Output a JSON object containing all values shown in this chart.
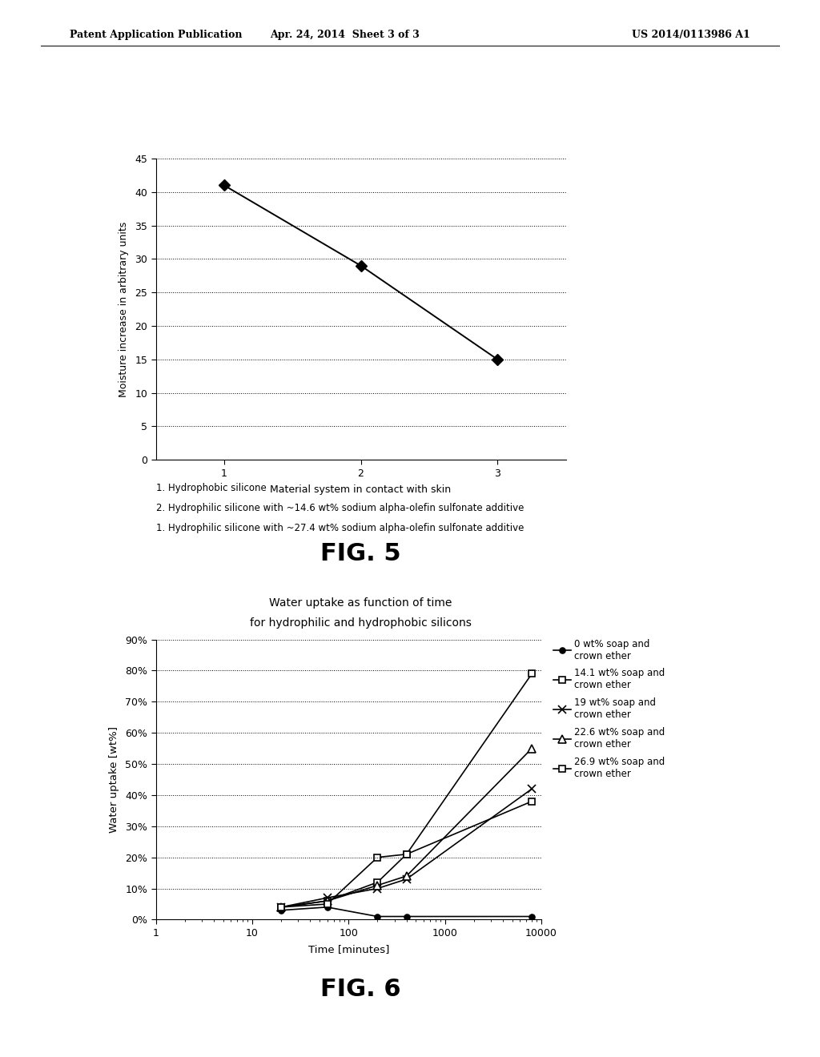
{
  "header_left": "Patent Application Publication",
  "header_center": "Apr. 24, 2014  Sheet 3 of 3",
  "header_right": "US 2014/0113986 A1",
  "fig5": {
    "x": [
      1,
      2,
      3
    ],
    "y": [
      41,
      29,
      15
    ],
    "xlabel": "Material system in contact with skin",
    "ylabel": "Moisture increase in arbitrary units",
    "ylim": [
      0,
      45
    ],
    "yticks": [
      0,
      5,
      10,
      15,
      20,
      25,
      30,
      35,
      40,
      45
    ],
    "xticks": [
      1,
      2,
      3
    ],
    "caption_lines": [
      "1. Hydrophobic silicone",
      "2. Hydrophilic silicone with ~14.6 wt% sodium alpha-olefin sulfonate additive",
      "1. Hydrophilic silicone with ~27.4 wt% sodium alpha-olefin sulfonate additive"
    ],
    "fig_label": "FIG. 5"
  },
  "fig6": {
    "title_line1": "Water uptake as function of time",
    "title_line2": "for hydrophilic and hydrophobic silicons",
    "xlabel": "Time [minutes]",
    "ylabel": "Water uptake [wt%]",
    "ylim": [
      0,
      0.9
    ],
    "yticks": [
      0,
      0.1,
      0.2,
      0.3,
      0.4,
      0.5,
      0.6,
      0.7,
      0.8,
      0.9
    ],
    "ytick_labels": [
      "0%",
      "10%",
      "20%",
      "30%",
      "40%",
      "50%",
      "60%",
      "70%",
      "80%",
      "90%"
    ],
    "xlim": [
      1,
      10000
    ],
    "xticks": [
      1,
      10,
      100,
      1000,
      10000
    ],
    "xtick_labels": [
      "1",
      "10",
      "100",
      "1000",
      "10000"
    ],
    "series": [
      {
        "label": "0 wt% soap and\ncrown ether",
        "x": [
          20,
          60,
          200,
          400,
          8000
        ],
        "y": [
          0.03,
          0.04,
          0.01,
          0.01,
          0.01
        ],
        "marker": "o",
        "markersize": 5,
        "linestyle": "-",
        "color": "#000000",
        "fillstyle": "full"
      },
      {
        "label": "14.1 wt% soap and\ncrown ether",
        "x": [
          20,
          60,
          200,
          400,
          8000
        ],
        "y": [
          0.04,
          0.06,
          0.12,
          0.21,
          0.38
        ],
        "marker": "s",
        "markersize": 6,
        "linestyle": "-",
        "color": "#000000",
        "fillstyle": "none"
      },
      {
        "label": "19 wt% soap and\ncrown ether",
        "x": [
          20,
          60,
          200,
          400,
          8000
        ],
        "y": [
          0.04,
          0.07,
          0.1,
          0.13,
          0.42
        ],
        "marker": "x",
        "markersize": 7,
        "linestyle": "-",
        "color": "#000000",
        "fillstyle": "full"
      },
      {
        "label": "22.6 wt% soap and\ncrown ether",
        "x": [
          20,
          60,
          200,
          400,
          8000
        ],
        "y": [
          0.04,
          0.06,
          0.11,
          0.14,
          0.55
        ],
        "marker": "^",
        "markersize": 7,
        "linestyle": "-",
        "color": "#000000",
        "fillstyle": "none"
      },
      {
        "label": "26.9 wt% soap and\ncrown ether",
        "x": [
          20,
          60,
          200,
          400,
          8000
        ],
        "y": [
          0.04,
          0.05,
          0.2,
          0.21,
          0.79
        ],
        "marker": "s",
        "markersize": 6,
        "linestyle": "-",
        "color": "#000000",
        "fillstyle": "none"
      }
    ],
    "fig_label": "FIG. 6"
  }
}
